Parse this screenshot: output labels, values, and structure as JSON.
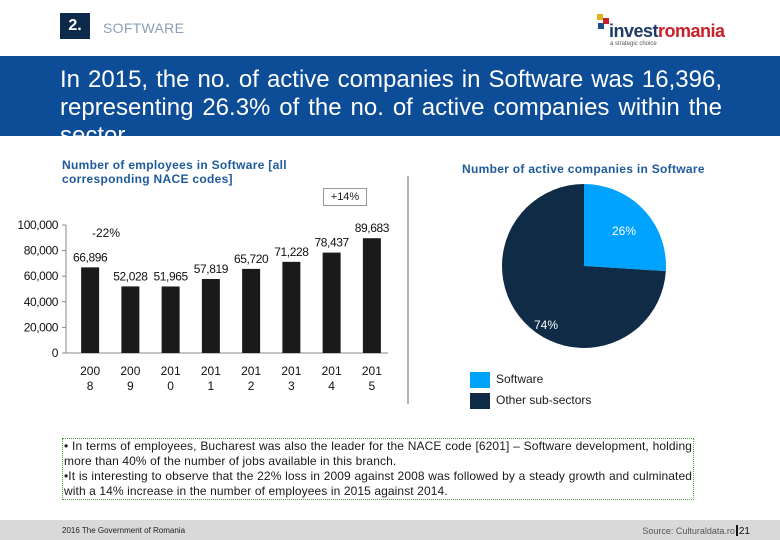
{
  "header": {
    "section_number": "2.",
    "section_title": "SOFTWARE",
    "logo": {
      "text_main": "invest",
      "text_accent": "romania",
      "tagline": "a strategic choice"
    }
  },
  "headline": "In 2015, the no. of active companies in Software was 16,396, representing 26.3% of the no. of active companies within the sector",
  "colors": {
    "bar": "#1a1a1a",
    "banner": "#0d4d97",
    "software": "#00a2ff",
    "other": "#0f2b45",
    "title_blue": "#1e5a9c"
  },
  "chart_data": [
    {
      "type": "bar",
      "title": "Number of employees in Software  [all corresponding NACE codes]",
      "categories": [
        "200 8",
        "200 9",
        "201 0",
        "201 1",
        "201 2",
        "201 3",
        "201 4",
        "201 5"
      ],
      "values": [
        66896,
        52028,
        51965,
        57819,
        65720,
        71228,
        78437,
        89683
      ],
      "value_labels": [
        "66,896",
        "52,028",
        "51,965",
        "57,819",
        "65,720",
        "71,228",
        "78,437",
        "89,683"
      ],
      "y_ticks": [
        0,
        20000,
        40000,
        60000,
        80000,
        100000
      ],
      "y_tick_labels": [
        "0",
        "20,000",
        "40,000",
        "60,000",
        "80,000",
        "100,000"
      ],
      "ylim": [
        0,
        100000
      ],
      "annotations": [
        "-22%",
        "+14%"
      ],
      "grid": false
    },
    {
      "type": "pie",
      "title": "Number of active companies in Software",
      "labels": [
        "Software",
        "Other sub-sectors"
      ],
      "values": [
        26,
        74
      ],
      "value_labels": [
        "26%",
        "74%"
      ],
      "legend": "bottom-left"
    }
  ],
  "notes": [
    "• In terms of employees, Bucharest was also the leader for the NACE code  [6201] – Software development, holding more than 40% of the number of jobs available in this branch.",
    "•It is interesting to observe that the 22% loss in 2009 against 2008 was followed by a steady growth and culminated with a 14% increase  in the number of employees in 2015 against 2014."
  ],
  "footer": {
    "left": "2016 The Government of Romania",
    "source": "Source: Culturaldata.ro",
    "page": "21"
  }
}
